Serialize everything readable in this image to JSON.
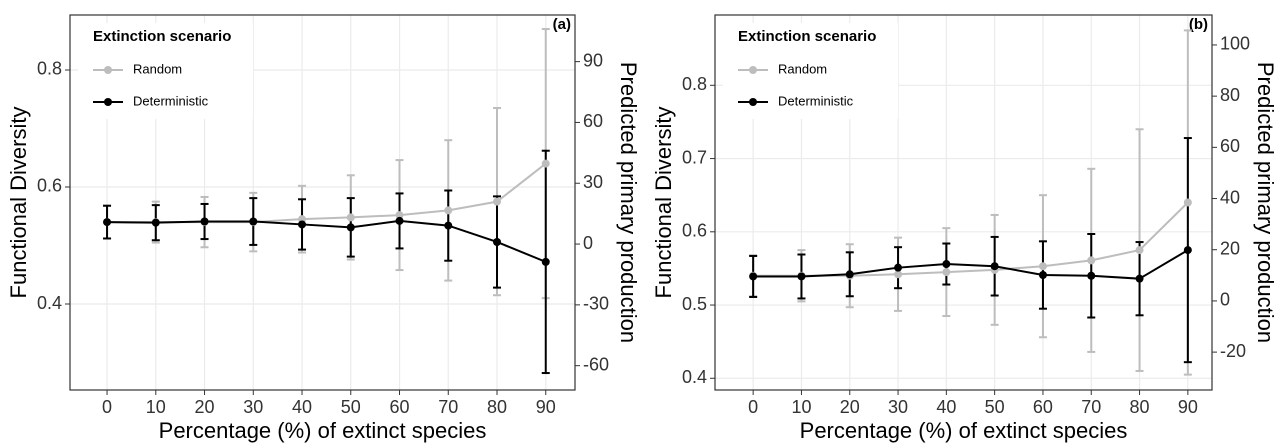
{
  "chart_data": [
    {
      "type": "line",
      "annotation": "(a)",
      "xlabel": "Percentage (%) of extinct species",
      "ylabel": "Functional Diversity",
      "y2label": "Predicted primary production",
      "legend_title": "Extinction scenario",
      "legend": "upper left",
      "grid": true,
      "x": [
        0,
        10,
        20,
        30,
        40,
        50,
        60,
        70,
        80,
        90
      ],
      "xlim": [
        -7.6,
        96
      ],
      "xticks": [
        0,
        10,
        20,
        30,
        40,
        50,
        60,
        70,
        80,
        90
      ],
      "ylim": [
        0.253,
        0.894
      ],
      "yticks": [
        0.4,
        0.6,
        0.8
      ],
      "y2lim": [
        -72,
        113
      ],
      "y2ticks": [
        -60,
        -30,
        0,
        30,
        60,
        90
      ],
      "series": [
        {
          "name": "Random",
          "color": "#bdbdbd",
          "values": [
            0.54,
            0.54,
            0.54,
            0.54,
            0.545,
            0.548,
            0.552,
            0.56,
            0.575,
            0.64
          ],
          "errors": [
            0.028,
            0.035,
            0.043,
            0.05,
            0.057,
            0.072,
            0.094,
            0.12,
            0.16,
            0.23
          ]
        },
        {
          "name": "Deterministic",
          "color": "#000000",
          "values": [
            0.54,
            0.539,
            0.541,
            0.541,
            0.536,
            0.531,
            0.542,
            0.534,
            0.506,
            0.472
          ],
          "errors": [
            0.028,
            0.03,
            0.03,
            0.04,
            0.043,
            0.05,
            0.047,
            0.06,
            0.078,
            0.19
          ]
        }
      ]
    },
    {
      "type": "line",
      "annotation": "(b)",
      "xlabel": "Percentage (%) of extinct species",
      "ylabel": "Functional Diversity",
      "y2label": "Predicted primary production",
      "legend_title": "Extinction scenario",
      "legend": "upper left",
      "grid": true,
      "x": [
        0,
        10,
        20,
        30,
        40,
        50,
        60,
        70,
        80,
        90
      ],
      "xlim": [
        -7.9,
        95
      ],
      "xticks": [
        0,
        10,
        20,
        30,
        40,
        50,
        60,
        70,
        80,
        90
      ],
      "ylim": [
        0.384,
        0.896
      ],
      "yticks": [
        0.4,
        0.5,
        0.6,
        0.7,
        0.8
      ],
      "y2lim": [
        -34.8,
        111.7
      ],
      "y2ticks": [
        -20,
        0,
        20,
        40,
        60,
        80,
        100
      ],
      "series": [
        {
          "name": "Random",
          "color": "#bdbdbd",
          "values": [
            0.54,
            0.54,
            0.54,
            0.542,
            0.545,
            0.548,
            0.553,
            0.561,
            0.575,
            0.64
          ],
          "errors": [
            0.028,
            0.035,
            0.043,
            0.05,
            0.06,
            0.075,
            0.097,
            0.125,
            0.165,
            0.235
          ]
        },
        {
          "name": "Deterministic",
          "color": "#000000",
          "values": [
            0.539,
            0.539,
            0.542,
            0.551,
            0.556,
            0.553,
            0.541,
            0.54,
            0.536,
            0.575
          ],
          "errors": [
            0.028,
            0.03,
            0.03,
            0.028,
            0.028,
            0.04,
            0.046,
            0.057,
            0.05,
            0.153
          ]
        }
      ]
    }
  ]
}
